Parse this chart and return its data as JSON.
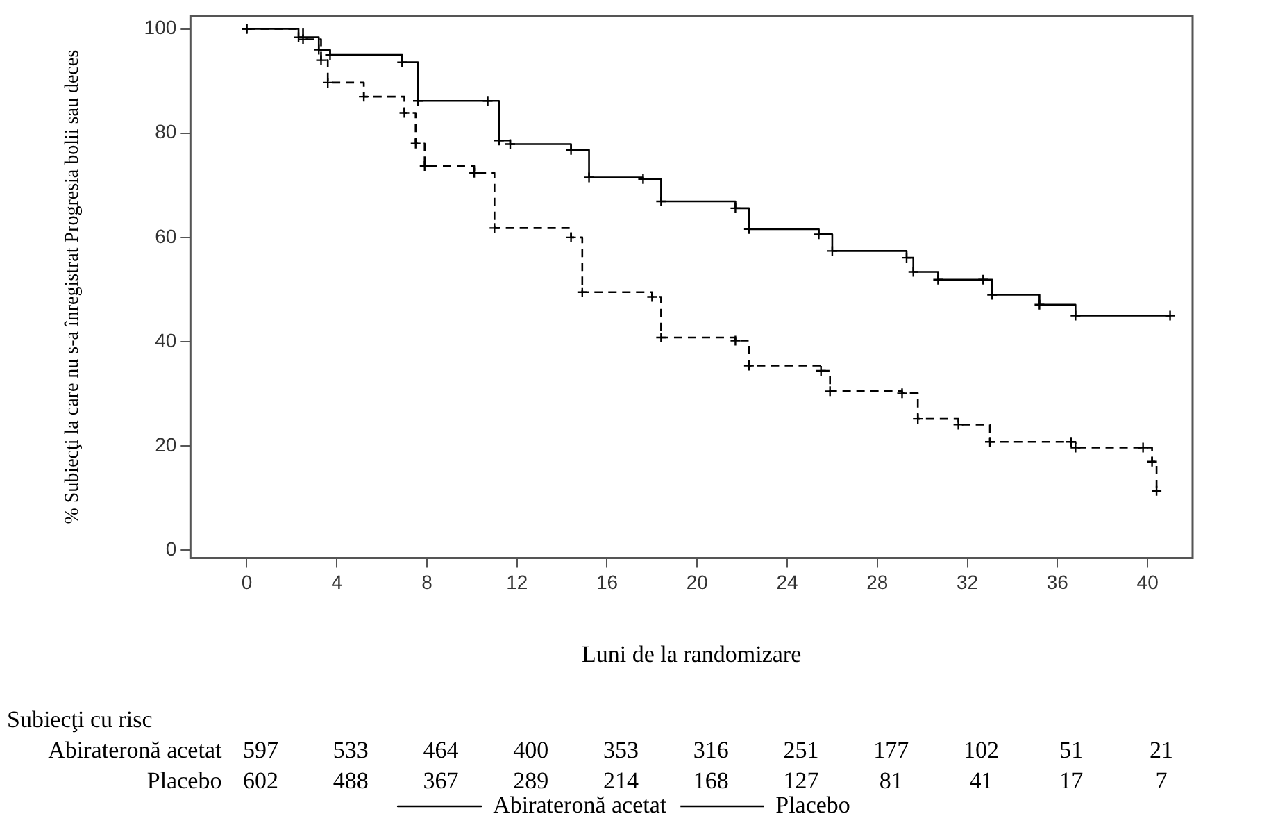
{
  "chart_data": {
    "type": "step",
    "xlabel": "Luni de la randomizare",
    "ylabel": "% Subiecţi la care nu s-a înregistrat Progresia bolii sau deces",
    "xlim": [
      -2.5,
      42
    ],
    "xticks": [
      0,
      4,
      8,
      12,
      16,
      20,
      24,
      28,
      32,
      36,
      40
    ],
    "ylim": [
      -1.5,
      102.5
    ],
    "yticks": [
      0,
      20,
      40,
      60,
      80,
      100
    ],
    "grid": false,
    "legend": "bottom",
    "marker": "cross",
    "series": [
      {
        "name": "Abirateronă acetat",
        "color": "#000000",
        "line_style": "solid",
        "x": [
          0,
          2.3,
          3.2,
          3.7,
          6.9,
          7.6,
          10.7,
          11.2,
          11.7,
          14.4,
          15.2,
          17.6,
          18.4,
          21.7,
          22.3,
          25.4,
          26,
          29.3,
          29.6,
          30.7,
          32.7,
          33.1,
          35.2,
          36.8,
          41
        ],
        "values": [
          100,
          98.4,
          96,
          95,
          93.6,
          86.2,
          86.2,
          78.6,
          77.9,
          76.8,
          71.5,
          71.2,
          66.9,
          65.6,
          61.6,
          60.6,
          57.4,
          56.1,
          53.4,
          51.9,
          51.9,
          49,
          47.1,
          45,
          45
        ]
      },
      {
        "name": "Placebo",
        "color": "#000000",
        "line_style": "dashed",
        "x": [
          0,
          2.5,
          3.3,
          3.6,
          5.2,
          7,
          7.5,
          7.9,
          10.1,
          11,
          14.4,
          14.9,
          18,
          18.4,
          21.7,
          22.3,
          25.5,
          25.9,
          29.1,
          29.8,
          31.6,
          33,
          36.6,
          36.8,
          39.8,
          40.2,
          40.4
        ],
        "values": [
          100,
          98,
          94,
          89.7,
          87,
          83.9,
          78,
          73.7,
          72.4,
          61.8,
          60,
          49.5,
          48.6,
          40.8,
          40.2,
          35.4,
          34.4,
          30.5,
          30.1,
          25.2,
          24.1,
          20.8,
          20.8,
          19.7,
          19.7,
          17,
          11.4
        ]
      }
    ],
    "annotations": [
      "Subiecţi cu risc",
      "Abirateronă acetat",
      "597",
      "533",
      "464",
      "400",
      "353",
      "316",
      "251",
      "177",
      "102",
      "51",
      "21",
      "Placebo",
      "602",
      "488",
      "367",
      "289",
      "214",
      "168",
      "127",
      "81",
      "41",
      "17",
      "7"
    ]
  }
}
